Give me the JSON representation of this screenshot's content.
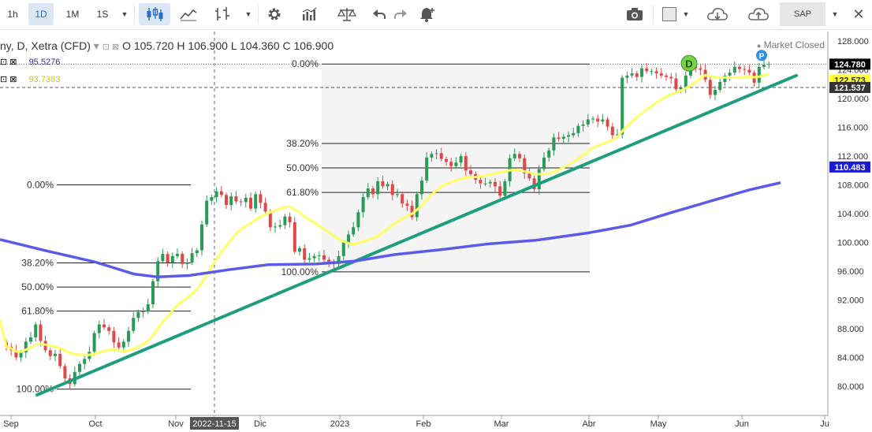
{
  "toolbar": {
    "intervals": [
      "1h",
      "1D",
      "1M",
      "1S"
    ],
    "selected_interval": "1D",
    "icons": [
      "candlestick-icon",
      "line-chart-icon",
      "indicator-icon",
      "settings-icon",
      "volume-icon",
      "scales-icon",
      "undo-icon",
      "redo-icon",
      "alert-icon",
      "camera-icon",
      "layout-icon",
      "cloud-download-icon",
      "cloud-upload-icon",
      "close-icon"
    ],
    "symbol": "SAP"
  },
  "legend": {
    "name": "ny, D, Xetra (CFD)",
    "open": "O 105.720",
    "high": "H 106.900",
    "low": "L 104.360",
    "close": "C 106.900",
    "ma1": "95.5276",
    "ma2": "93.7383",
    "status": "Market Closed"
  },
  "colors": {
    "up": "#2a9a57",
    "down": "#e04848",
    "ma50": "#ffff66",
    "ma200": "#5b5be8",
    "trend": "#1f9e7f",
    "price_tag": "#000000",
    "ma50_tag": "#ffff33",
    "ma200_tag": "#1a1ad6",
    "level_tag": "#333333"
  },
  "chart_data": {
    "type": "candlestick",
    "title": "",
    "xlabel": "",
    "ylabel": "",
    "ylim": [
      76,
      128
    ],
    "y_ticks": [
      "80.000",
      "84.000",
      "88.000",
      "92.000",
      "96.000",
      "100.000",
      "104.000",
      "108.000",
      "112.000",
      "116.000",
      "120.000",
      "124.000",
      "128.000"
    ],
    "x_ticks": [
      "Sep",
      "Oct",
      "Nov",
      "2022-11-15",
      "Dic",
      "2023",
      "Feb",
      "Mar",
      "Abr",
      "May",
      "Jun",
      "Ju"
    ],
    "closes": [
      85.5,
      85.0,
      84.0,
      84.7,
      86.2,
      86.8,
      88.6,
      86.3,
      85.0,
      84.2,
      84.5,
      82.8,
      81.1,
      80.3,
      82.0,
      83.1,
      83.8,
      84.8,
      87.4,
      88.6,
      88.2,
      87.7,
      86.1,
      85.4,
      86.2,
      87.7,
      89.5,
      90.3,
      90.4,
      91.4,
      94.6,
      97.4,
      98.4,
      97.2,
      98.1,
      98.4,
      97.0,
      97.2,
      98.5,
      98.9,
      102.5,
      105.8,
      106.3,
      107.1,
      106.6,
      105.2,
      106.4,
      105.7,
      105.6,
      106.2,
      104.7,
      106.7,
      105.5,
      104.3,
      102.1,
      102.2,
      102.4,
      103.6,
      102.8,
      98.7,
      99.2,
      97.6,
      97.8,
      98.1,
      98.2,
      97.6,
      97.1,
      97.0,
      98.1,
      100.0,
      101.1,
      102.1,
      104.2,
      106.3,
      107.5,
      106.7,
      108.5,
      107.8,
      108.1,
      106.6,
      106.7,
      105.4,
      105.1,
      103.5,
      106.7,
      108.6,
      111.8,
      112.3,
      112.4,
      111.6,
      111.2,
      110.6,
      111.1,
      112.0,
      110.0,
      109.5,
      108.7,
      108.2,
      108.2,
      108.4,
      107.8,
      106.5,
      108.5,
      111.7,
      112.3,
      111.7,
      109.6,
      108.9,
      107.4,
      110.2,
      111.8,
      112.8,
      114.6,
      114.4,
      114.7,
      114.9,
      115.2,
      116.2,
      116.4,
      117.1,
      117.2,
      116.8,
      117.1,
      116.1,
      114.9,
      115.0,
      122.9,
      123.2,
      123.5,
      123.0,
      124.2,
      123.8,
      123.8,
      123.5,
      123.2,
      123.0,
      122.8,
      121.3,
      121.5,
      123.2,
      124.5,
      124.2,
      124.0,
      122.6,
      120.5,
      121.2,
      122.3,
      123.2,
      123.6,
      124.4,
      124.1,
      124.0,
      123.6,
      122.2,
      124.4,
      124.7,
      124.8
    ],
    "fibonacci": [
      {
        "levels": [
          "0.00%",
          "38.20%",
          "50.00%",
          "61.80%",
          "100.00%"
        ],
        "high": 108.0,
        "low": 79.6
      },
      {
        "levels": [
          "0.00%",
          "38.20%",
          "50.00%",
          "61.80%",
          "100.00%"
        ],
        "high": 124.8,
        "low": 95.9
      }
    ],
    "markers": [
      {
        "label": "D",
        "x": "mid-May 2023"
      },
      {
        "label": "P",
        "x": "early June 2023"
      }
    ],
    "price_labels": {
      "close": "124.780",
      "ma50": "122.573",
      "level": "121.537",
      "ma200": "110.483"
    },
    "grid": false,
    "legend_position": "top-left"
  }
}
